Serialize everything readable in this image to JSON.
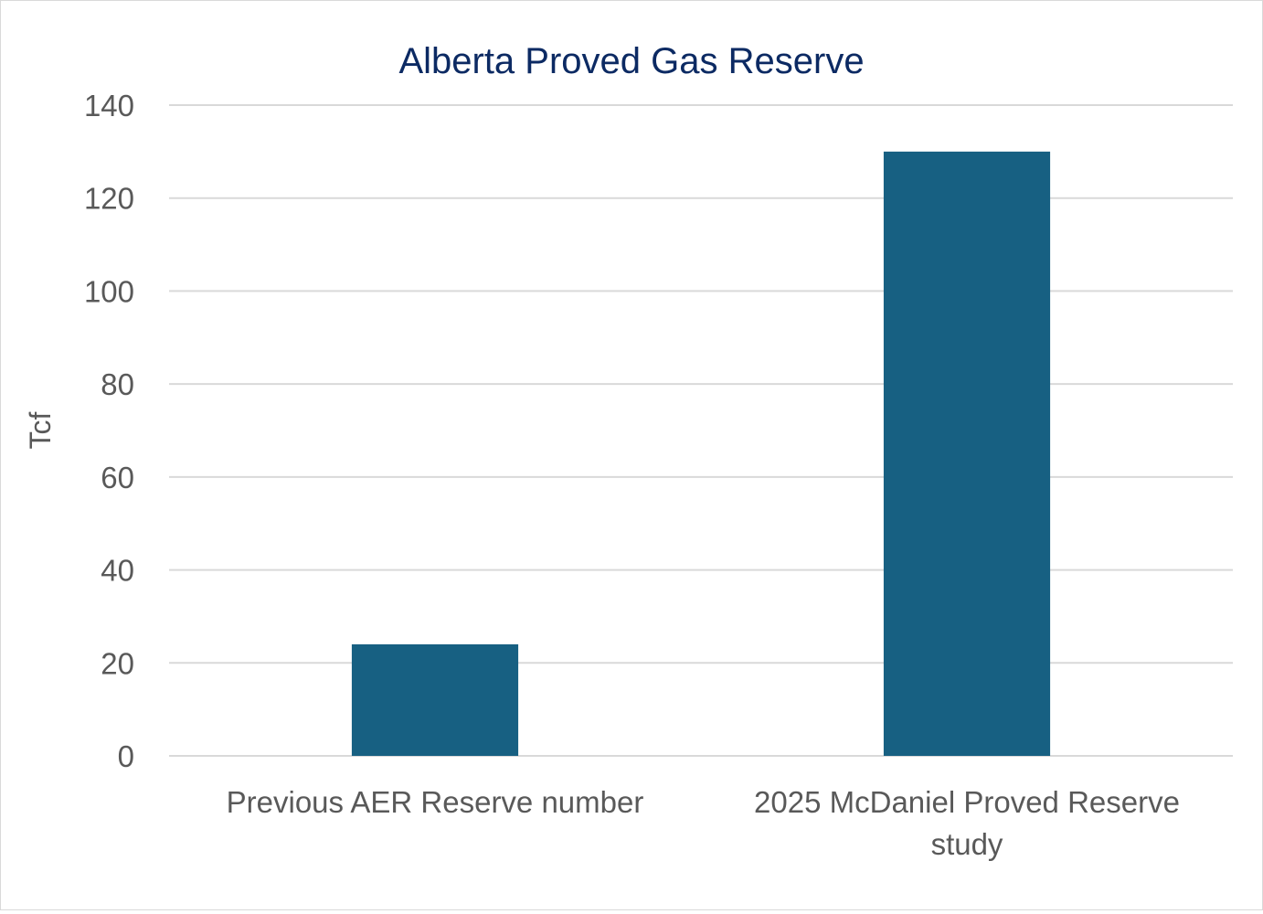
{
  "chart_data": {
    "type": "bar",
    "title": "Alberta Proved Gas Reserve",
    "xlabel": "",
    "ylabel": "Tcf",
    "categories": [
      [
        "Previous AER Reserve number"
      ],
      [
        "2025 McDaniel Proved Reserve",
        "study"
      ]
    ],
    "values": [
      24,
      130
    ],
    "ylim": [
      0,
      140
    ],
    "yticks": [
      "0",
      "20",
      "40",
      "60",
      "80",
      "100",
      "120",
      "140"
    ],
    "grid": true,
    "legend": "none",
    "colors": {
      "bar": "#176082",
      "title": "#0c2a63",
      "axis_text": "#595959",
      "gridline": "#d9d9d9"
    }
  }
}
